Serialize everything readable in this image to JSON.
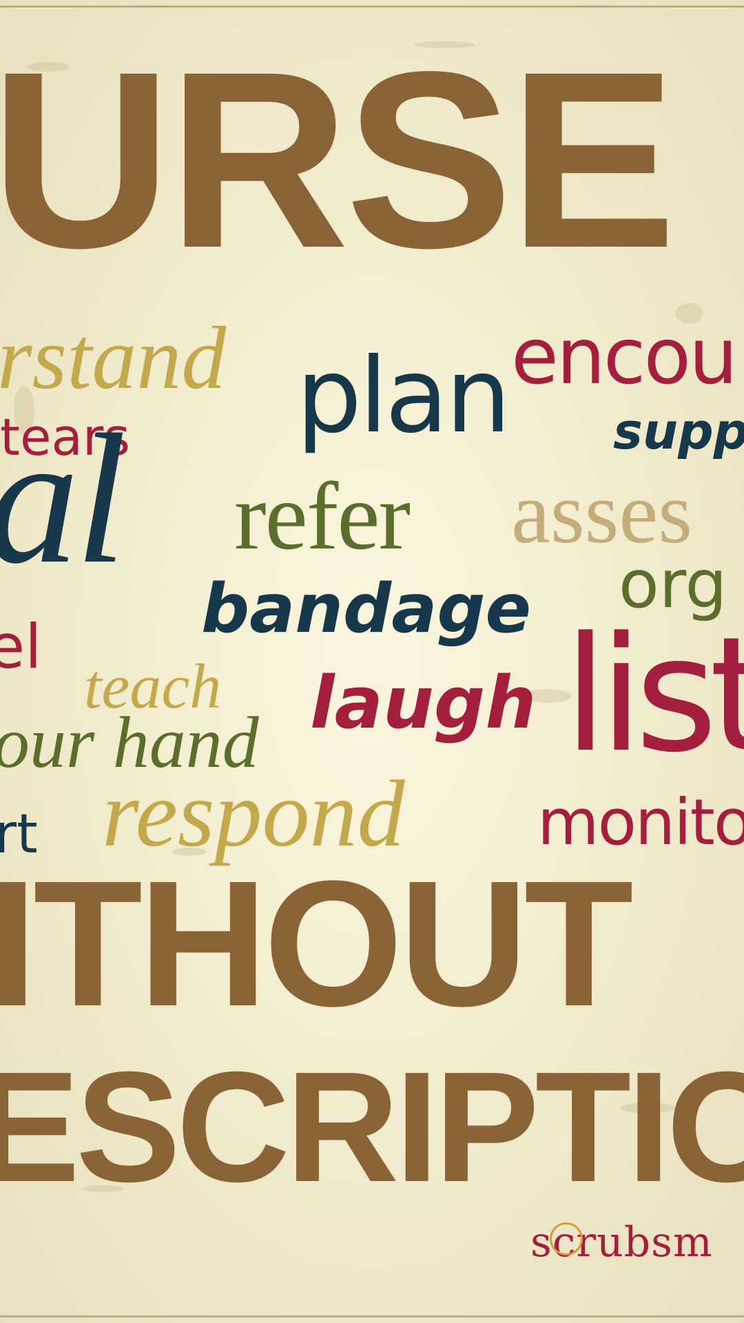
{
  "headline": {
    "top": "URSE",
    "middle": "ITHOUT",
    "bottom": "ESCRIPTIO"
  },
  "words": {
    "understand": "rstand",
    "plan": "plan",
    "encourage": "encou",
    "tears": "tears",
    "support": "supp",
    "heal": "al",
    "refer": "refer",
    "assess": "asses",
    "organize": "org",
    "bandage": "bandage",
    "feel": "el",
    "teach": "teach",
    "laugh": "laugh",
    "listen": "list",
    "hold_your_hand": "our hand",
    "respond": "respond",
    "monitor": "monito",
    "comfort": "rt"
  },
  "logo": {
    "s": "s",
    "c": "c",
    "rest": "rubsm"
  },
  "colors": {
    "background": "#f1ebcd",
    "headline_brown": "#8a6337",
    "gold": "#c3a84c",
    "navy": "#17384a",
    "crimson": "#a31f3d",
    "olive": "#5b6e2c",
    "tan": "#c4ad7a"
  }
}
